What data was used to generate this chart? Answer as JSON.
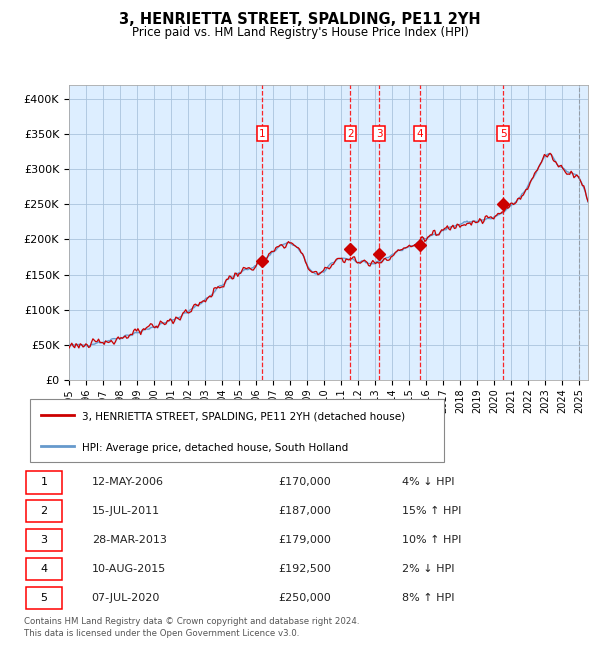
{
  "title": "3, HENRIETTA STREET, SPALDING, PE11 2YH",
  "subtitle": "Price paid vs. HM Land Registry's House Price Index (HPI)",
  "legend_line1": "3, HENRIETTA STREET, SPALDING, PE11 2YH (detached house)",
  "legend_line2": "HPI: Average price, detached house, South Holland",
  "footer1": "Contains HM Land Registry data © Crown copyright and database right 2024.",
  "footer2": "This data is licensed under the Open Government Licence v3.0.",
  "hpi_color": "#6699cc",
  "price_color": "#cc0000",
  "bg_color": "#ddeeff",
  "transactions": [
    {
      "num": 1,
      "date": "12-MAY-2006",
      "price": 170000,
      "pct": "4%",
      "dir": "↓",
      "year": 2006.37
    },
    {
      "num": 2,
      "date": "15-JUL-2011",
      "price": 187000,
      "pct": "15%",
      "dir": "↑",
      "year": 2011.54
    },
    {
      "num": 3,
      "date": "28-MAR-2013",
      "price": 179000,
      "pct": "10%",
      "dir": "↑",
      "year": 2013.24
    },
    {
      "num": 4,
      "date": "10-AUG-2015",
      "price": 192500,
      "pct": "2%",
      "dir": "↓",
      "year": 2015.61
    },
    {
      "num": 5,
      "date": "07-JUL-2020",
      "price": 250000,
      "pct": "8%",
      "dir": "↑",
      "year": 2020.52
    }
  ],
  "ylim": [
    0,
    420000
  ],
  "xlim": [
    1995,
    2025.5
  ],
  "yticks": [
    0,
    50000,
    100000,
    150000,
    200000,
    250000,
    300000,
    350000,
    400000
  ],
  "ytick_labels": [
    "£0",
    "£50K",
    "£100K",
    "£150K",
    "£200K",
    "£250K",
    "£300K",
    "£350K",
    "£400K"
  ],
  "xtick_years": [
    1995,
    1996,
    1997,
    1998,
    1999,
    2000,
    2001,
    2002,
    2003,
    2004,
    2005,
    2006,
    2007,
    2008,
    2009,
    2010,
    2011,
    2012,
    2013,
    2014,
    2015,
    2016,
    2017,
    2018,
    2019,
    2020,
    2021,
    2022,
    2023,
    2024,
    2025
  ],
  "hpi_anchors_x": [
    1995.0,
    1997.0,
    1999.0,
    2001.0,
    2003.0,
    2004.5,
    2005.5,
    2006.5,
    2007.5,
    2008.5,
    2009.5,
    2010.5,
    2011.5,
    2012.5,
    2013.5,
    2014.5,
    2015.5,
    2016.5,
    2017.5,
    2018.5,
    2019.5,
    2020.5,
    2021.5,
    2022.5,
    2023.2,
    2023.8,
    2024.5,
    2025.3
  ],
  "hpi_anchors_y": [
    49000,
    55000,
    68000,
    85000,
    115000,
    145000,
    158000,
    172000,
    192000,
    185000,
    150000,
    168000,
    172000,
    165000,
    172000,
    185000,
    195000,
    208000,
    218000,
    225000,
    228000,
    238000,
    260000,
    298000,
    322000,
    305000,
    295000,
    270000
  ],
  "noise_seed_hpi": 42,
  "noise_seed_price": 123,
  "noise_hpi": 2000,
  "noise_price": 3500
}
